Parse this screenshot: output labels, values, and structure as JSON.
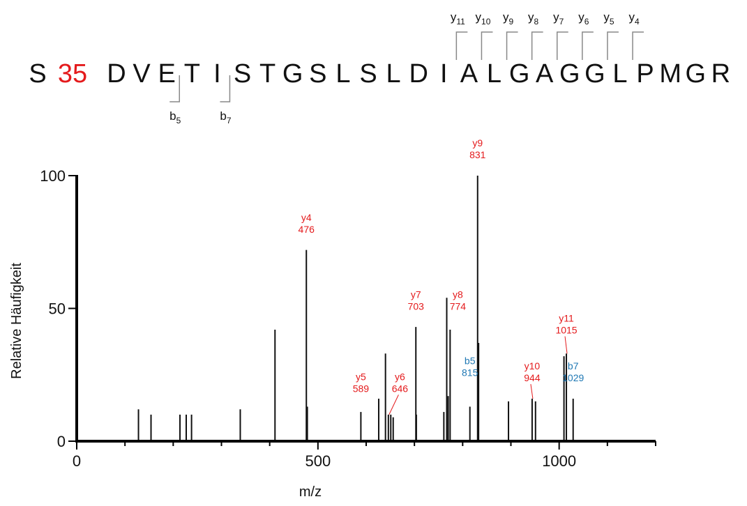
{
  "sequence": {
    "residues": [
      "S",
      "35",
      "D",
      "V",
      "E",
      "T",
      "I",
      "S",
      "T",
      "G",
      "S",
      "L",
      "S",
      "L",
      "D",
      "I",
      "A",
      "L",
      "G",
      "A",
      "G",
      "G",
      "L",
      "P",
      "M",
      "G",
      "R"
    ],
    "modified_index": 1,
    "modified_color": "#e41a1c",
    "y_ions": [
      {
        "base": "y",
        "sub": "11",
        "after_index": 15
      },
      {
        "base": "y",
        "sub": "10",
        "after_index": 16
      },
      {
        "base": "y",
        "sub": "9",
        "after_index": 17
      },
      {
        "base": "y",
        "sub": "8",
        "after_index": 18
      },
      {
        "base": "y",
        "sub": "7",
        "after_index": 19
      },
      {
        "base": "y",
        "sub": "6",
        "after_index": 20
      },
      {
        "base": "y",
        "sub": "5",
        "after_index": 21
      },
      {
        "base": "y",
        "sub": "4",
        "after_index": 22
      }
    ],
    "b_ions": [
      {
        "base": "b",
        "sub": "5",
        "after_index": 4
      },
      {
        "base": "b",
        "sub": "7",
        "after_index": 6
      }
    ]
  },
  "chart_data": {
    "type": "bar",
    "title": "",
    "xlabel": "m/z",
    "ylabel": "Relative Häufigkeit",
    "xlim": [
      0,
      1200
    ],
    "ylim": [
      0,
      100
    ],
    "xticks": [
      0,
      500,
      1000
    ],
    "yticks": [
      0,
      50,
      100
    ],
    "grid": false,
    "colors": {
      "y_ion": "#e41a1c",
      "b_ion": "#1f78b4",
      "peak": "#111111"
    },
    "peaks": [
      {
        "mz": 128,
        "intensity": 12
      },
      {
        "mz": 154,
        "intensity": 10
      },
      {
        "mz": 214,
        "intensity": 10
      },
      {
        "mz": 227,
        "intensity": 10
      },
      {
        "mz": 238,
        "intensity": 10
      },
      {
        "mz": 339,
        "intensity": 12
      },
      {
        "mz": 411,
        "intensity": 42
      },
      {
        "mz": 476,
        "intensity": 72
      },
      {
        "mz": 478,
        "intensity": 13
      },
      {
        "mz": 589,
        "intensity": 11
      },
      {
        "mz": 626,
        "intensity": 16
      },
      {
        "mz": 640,
        "intensity": 33
      },
      {
        "mz": 646,
        "intensity": 10
      },
      {
        "mz": 651,
        "intensity": 10
      },
      {
        "mz": 656,
        "intensity": 9
      },
      {
        "mz": 703,
        "intensity": 43
      },
      {
        "mz": 704,
        "intensity": 10
      },
      {
        "mz": 761,
        "intensity": 11
      },
      {
        "mz": 767,
        "intensity": 54
      },
      {
        "mz": 770,
        "intensity": 17
      },
      {
        "mz": 774,
        "intensity": 42
      },
      {
        "mz": 815,
        "intensity": 13
      },
      {
        "mz": 831,
        "intensity": 100
      },
      {
        "mz": 833,
        "intensity": 37
      },
      {
        "mz": 895,
        "intensity": 15
      },
      {
        "mz": 944,
        "intensity": 16
      },
      {
        "mz": 951,
        "intensity": 15
      },
      {
        "mz": 1010,
        "intensity": 32
      },
      {
        "mz": 1015,
        "intensity": 33
      },
      {
        "mz": 1029,
        "intensity": 16
      }
    ],
    "annotations": [
      {
        "ion": "y4",
        "mz_label": "476",
        "mz": 476,
        "intensity": 72,
        "kind": "y_ion",
        "label_x": 476,
        "label_y": 83,
        "leader": false
      },
      {
        "ion": "y5",
        "mz_label": "589",
        "mz": 589,
        "intensity": 11,
        "kind": "y_ion",
        "label_x": 589,
        "label_y": 23,
        "leader": false
      },
      {
        "ion": "y6",
        "mz_label": "646",
        "mz": 646,
        "intensity": 10,
        "kind": "y_ion",
        "label_x": 670,
        "label_y": 23,
        "leader": true
      },
      {
        "ion": "y7",
        "mz_label": "703",
        "mz": 703,
        "intensity": 43,
        "kind": "y_ion",
        "label_x": 703,
        "label_y": 54,
        "leader": false
      },
      {
        "ion": "y8",
        "mz_label": "774",
        "mz": 774,
        "intensity": 42,
        "kind": "y_ion",
        "label_x": 790,
        "label_y": 54,
        "leader": false
      },
      {
        "ion": "b5",
        "mz_label": "815",
        "mz": 815,
        "intensity": 13,
        "kind": "b_ion",
        "label_x": 815,
        "label_y": 29,
        "leader": false
      },
      {
        "ion": "y9",
        "mz_label": "831",
        "mz": 831,
        "intensity": 100,
        "kind": "y_ion",
        "label_x": 831,
        "label_y": 111,
        "leader": false
      },
      {
        "ion": "y10",
        "mz_label": "944",
        "mz": 944,
        "intensity": 16,
        "kind": "y_ion",
        "label_x": 944,
        "label_y": 27,
        "leader": true
      },
      {
        "ion": "y11",
        "mz_label": "1015",
        "mz": 1015,
        "intensity": 33,
        "kind": "y_ion",
        "label_x": 1015,
        "label_y": 45,
        "leader": true
      },
      {
        "ion": "b7",
        "mz_label": "1029",
        "mz": 1029,
        "intensity": 16,
        "kind": "b_ion",
        "label_x": 1029,
        "label_y": 27,
        "leader": false
      }
    ]
  }
}
